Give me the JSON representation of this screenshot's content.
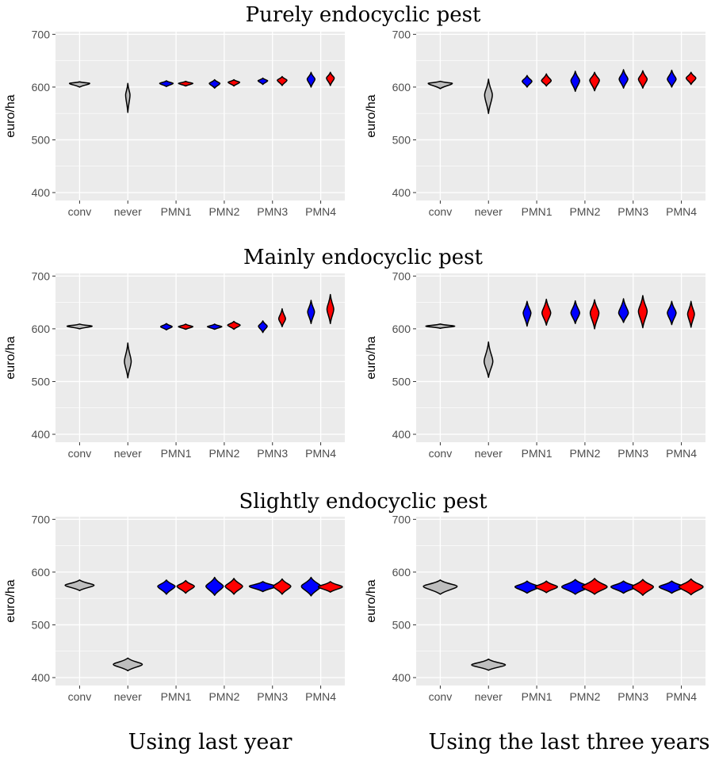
{
  "figure": {
    "row_titles": [
      "Purely endocyclic pest",
      "Mainly endocyclic pest",
      "Slightly endocyclic pest"
    ],
    "column_titles": [
      "Using last year",
      "Using the last three years"
    ]
  },
  "colors": {
    "panel_bg": "#ebebeb",
    "grid": "#ffffff",
    "conv_never": "#bebebe",
    "blue": "#0000ff",
    "red": "#ff0000",
    "outline": "#000000"
  },
  "chart_data": [
    {
      "type": "violin",
      "row": "Purely endocyclic pest",
      "column": "Using last year",
      "ylabel": "euro/ha",
      "ylim": [
        385,
        705
      ],
      "yticks": [
        400,
        500,
        600,
        700
      ],
      "categories": [
        "conv",
        "never",
        "PMN1",
        "PMN2",
        "PMN3",
        "PMN4"
      ],
      "series": [
        {
          "category": "conv",
          "color": "grey",
          "center": 607,
          "min": 600,
          "max": 610,
          "width": 0.42
        },
        {
          "category": "never",
          "color": "grey",
          "center": 585,
          "min": 552,
          "max": 607,
          "width": 0.09
        },
        {
          "category": "PMN1",
          "color": "blue",
          "center": 607,
          "min": 601,
          "max": 612,
          "width": 0.28
        },
        {
          "category": "PMN1",
          "color": "red",
          "center": 607,
          "min": 602,
          "max": 611,
          "width": 0.3
        },
        {
          "category": "PMN2",
          "color": "blue",
          "center": 607,
          "min": 598,
          "max": 614,
          "width": 0.22
        },
        {
          "category": "PMN2",
          "color": "red",
          "center": 609,
          "min": 602,
          "max": 614,
          "width": 0.24
        },
        {
          "category": "PMN3",
          "color": "blue",
          "center": 612,
          "min": 605,
          "max": 617,
          "width": 0.2
        },
        {
          "category": "PMN3",
          "color": "red",
          "center": 613,
          "min": 603,
          "max": 620,
          "width": 0.2
        },
        {
          "category": "PMN4",
          "color": "blue",
          "center": 615,
          "min": 600,
          "max": 628,
          "width": 0.16
        },
        {
          "category": "PMN4",
          "color": "red",
          "center": 617,
          "min": 603,
          "max": 628,
          "width": 0.16
        }
      ]
    },
    {
      "type": "violin",
      "row": "Purely endocyclic pest",
      "column": "Using the last three years",
      "ylabel": "euro/ha",
      "ylim": [
        385,
        705
      ],
      "yticks": [
        400,
        500,
        600,
        700
      ],
      "categories": [
        "conv",
        "never",
        "PMN1",
        "PMN2",
        "PMN3",
        "PMN4"
      ],
      "series": [
        {
          "category": "conv",
          "color": "grey",
          "center": 607,
          "min": 597,
          "max": 611,
          "width": 0.5
        },
        {
          "category": "never",
          "color": "grey",
          "center": 585,
          "min": 550,
          "max": 615,
          "width": 0.16
        },
        {
          "category": "PMN1",
          "color": "blue",
          "center": 611,
          "min": 600,
          "max": 622,
          "width": 0.2
        },
        {
          "category": "PMN1",
          "color": "red",
          "center": 612,
          "min": 602,
          "max": 625,
          "width": 0.2
        },
        {
          "category": "PMN2",
          "color": "blue",
          "center": 612,
          "min": 592,
          "max": 630,
          "width": 0.18
        },
        {
          "category": "PMN2",
          "color": "red",
          "center": 613,
          "min": 593,
          "max": 628,
          "width": 0.2
        },
        {
          "category": "PMN3",
          "color": "blue",
          "center": 615,
          "min": 598,
          "max": 633,
          "width": 0.18
        },
        {
          "category": "PMN3",
          "color": "red",
          "center": 615,
          "min": 598,
          "max": 631,
          "width": 0.18
        },
        {
          "category": "PMN4",
          "color": "blue",
          "center": 615,
          "min": 600,
          "max": 632,
          "width": 0.18
        },
        {
          "category": "PMN4",
          "color": "red",
          "center": 617,
          "min": 605,
          "max": 628,
          "width": 0.2
        }
      ]
    },
    {
      "type": "violin",
      "row": "Mainly endocyclic pest",
      "column": "Using last year",
      "ylabel": "euro/ha",
      "ylim": [
        385,
        705
      ],
      "yticks": [
        400,
        500,
        600,
        700
      ],
      "categories": [
        "conv",
        "never",
        "PMN1",
        "PMN2",
        "PMN3",
        "PMN4"
      ],
      "series": [
        {
          "category": "conv",
          "color": "grey",
          "center": 605,
          "min": 600,
          "max": 609,
          "width": 0.52
        },
        {
          "category": "never",
          "color": "grey",
          "center": 538,
          "min": 507,
          "max": 573,
          "width": 0.14
        },
        {
          "category": "PMN1",
          "color": "blue",
          "center": 604,
          "min": 598,
          "max": 610,
          "width": 0.24
        },
        {
          "category": "PMN1",
          "color": "red",
          "center": 604,
          "min": 599,
          "max": 609,
          "width": 0.3
        },
        {
          "category": "PMN2",
          "color": "blue",
          "center": 604,
          "min": 599,
          "max": 609,
          "width": 0.3
        },
        {
          "category": "PMN2",
          "color": "red",
          "center": 607,
          "min": 599,
          "max": 614,
          "width": 0.26
        },
        {
          "category": "PMN3",
          "color": "blue",
          "center": 605,
          "min": 593,
          "max": 615,
          "width": 0.18
        },
        {
          "category": "PMN3",
          "color": "red",
          "center": 619,
          "min": 604,
          "max": 638,
          "width": 0.14
        },
        {
          "category": "PMN4",
          "color": "blue",
          "center": 632,
          "min": 610,
          "max": 654,
          "width": 0.14
        },
        {
          "category": "PMN4",
          "color": "red",
          "center": 637,
          "min": 610,
          "max": 665,
          "width": 0.14
        }
      ]
    },
    {
      "type": "violin",
      "row": "Mainly endocyclic pest",
      "column": "Using the last three years",
      "ylabel": "euro/ha",
      "ylim": [
        385,
        705
      ],
      "yticks": [
        400,
        500,
        600,
        700
      ],
      "categories": [
        "conv",
        "never",
        "PMN1",
        "PMN2",
        "PMN3",
        "PMN4"
      ],
      "series": [
        {
          "category": "conv",
          "color": "grey",
          "center": 605,
          "min": 601,
          "max": 609,
          "width": 0.6
        },
        {
          "category": "never",
          "color": "grey",
          "center": 538,
          "min": 508,
          "max": 575,
          "width": 0.18
        },
        {
          "category": "PMN1",
          "color": "blue",
          "center": 630,
          "min": 605,
          "max": 652,
          "width": 0.16
        },
        {
          "category": "PMN1",
          "color": "red",
          "center": 630,
          "min": 607,
          "max": 656,
          "width": 0.18
        },
        {
          "category": "PMN2",
          "color": "blue",
          "center": 630,
          "min": 610,
          "max": 653,
          "width": 0.18
        },
        {
          "category": "PMN2",
          "color": "red",
          "center": 630,
          "min": 600,
          "max": 655,
          "width": 0.18
        },
        {
          "category": "PMN3",
          "color": "blue",
          "center": 630,
          "min": 612,
          "max": 657,
          "width": 0.2
        },
        {
          "category": "PMN3",
          "color": "red",
          "center": 633,
          "min": 602,
          "max": 663,
          "width": 0.18
        },
        {
          "category": "PMN4",
          "color": "blue",
          "center": 630,
          "min": 608,
          "max": 652,
          "width": 0.18
        },
        {
          "category": "PMN4",
          "color": "red",
          "center": 628,
          "min": 603,
          "max": 652,
          "width": 0.14
        }
      ]
    },
    {
      "type": "violin",
      "row": "Slightly endocyclic pest",
      "column": "Using last year",
      "ylabel": "euro/ha",
      "ylim": [
        385,
        705
      ],
      "yticks": [
        400,
        500,
        600,
        700
      ],
      "categories": [
        "conv",
        "never",
        "PMN1",
        "PMN2",
        "PMN3",
        "PMN4"
      ],
      "series": [
        {
          "category": "conv",
          "color": "grey",
          "center": 575,
          "min": 565,
          "max": 585,
          "width": 0.6
        },
        {
          "category": "never",
          "color": "grey",
          "center": 425,
          "min": 413,
          "max": 437,
          "width": 0.6
        },
        {
          "category": "PMN1",
          "color": "blue",
          "center": 573,
          "min": 558,
          "max": 585,
          "width": 0.36
        },
        {
          "category": "PMN1",
          "color": "red",
          "center": 573,
          "min": 560,
          "max": 584,
          "width": 0.36
        },
        {
          "category": "PMN2",
          "color": "blue",
          "center": 573,
          "min": 556,
          "max": 590,
          "width": 0.36
        },
        {
          "category": "PMN2",
          "color": "red",
          "center": 573,
          "min": 558,
          "max": 588,
          "width": 0.36
        },
        {
          "category": "PMN3",
          "color": "blue",
          "center": 573,
          "min": 563,
          "max": 582,
          "width": 0.56
        },
        {
          "category": "PMN3",
          "color": "red",
          "center": 573,
          "min": 558,
          "max": 587,
          "width": 0.36
        },
        {
          "category": "PMN4",
          "color": "blue",
          "center": 573,
          "min": 555,
          "max": 590,
          "width": 0.4
        },
        {
          "category": "PMN4",
          "color": "red",
          "center": 572,
          "min": 562,
          "max": 582,
          "width": 0.5
        }
      ]
    },
    {
      "type": "violin",
      "row": "Slightly endocyclic pest",
      "column": "Using the last three years",
      "ylabel": "euro/ha",
      "ylim": [
        385,
        705
      ],
      "yticks": [
        400,
        500,
        600,
        700
      ],
      "categories": [
        "conv",
        "never",
        "PMN1",
        "PMN2",
        "PMN3",
        "PMN4"
      ],
      "series": [
        {
          "category": "conv",
          "color": "grey",
          "center": 573,
          "min": 558,
          "max": 585,
          "width": 0.7
        },
        {
          "category": "never",
          "color": "grey",
          "center": 424,
          "min": 414,
          "max": 435,
          "width": 0.7
        },
        {
          "category": "PMN1",
          "color": "blue",
          "center": 572,
          "min": 560,
          "max": 583,
          "width": 0.5
        },
        {
          "category": "PMN1",
          "color": "red",
          "center": 572,
          "min": 561,
          "max": 583,
          "width": 0.46
        },
        {
          "category": "PMN2",
          "color": "blue",
          "center": 572,
          "min": 558,
          "max": 586,
          "width": 0.56
        },
        {
          "category": "PMN2",
          "color": "red",
          "center": 572,
          "min": 558,
          "max": 588,
          "width": 0.52
        },
        {
          "category": "PMN3",
          "color": "blue",
          "center": 572,
          "min": 560,
          "max": 583,
          "width": 0.52
        },
        {
          "category": "PMN3",
          "color": "red",
          "center": 572,
          "min": 556,
          "max": 586,
          "width": 0.44
        },
        {
          "category": "PMN4",
          "color": "blue",
          "center": 572,
          "min": 560,
          "max": 583,
          "width": 0.52
        },
        {
          "category": "PMN4",
          "color": "red",
          "center": 572,
          "min": 557,
          "max": 587,
          "width": 0.5
        }
      ]
    }
  ]
}
